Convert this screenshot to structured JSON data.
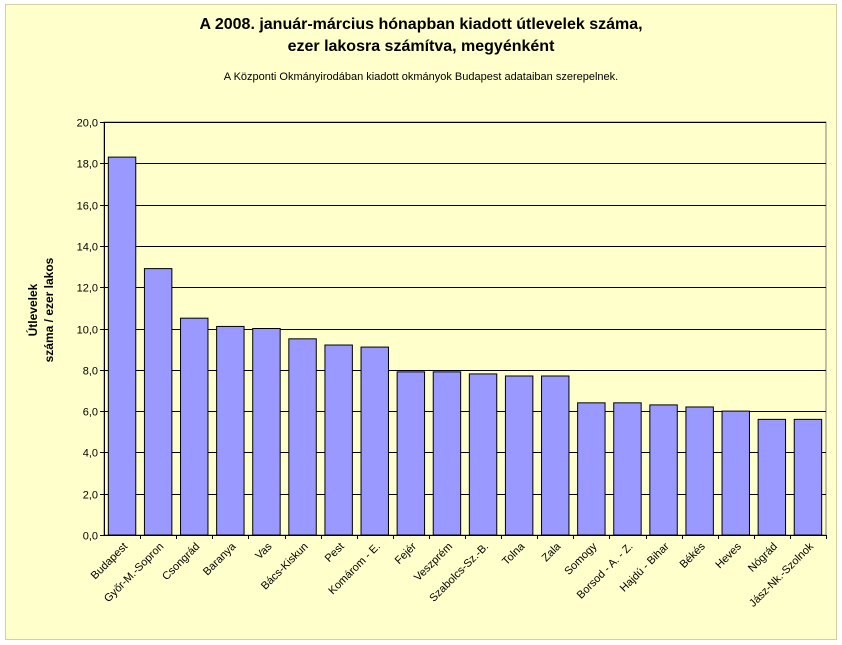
{
  "chart_data": {
    "type": "bar",
    "title_line1": "A 2008. január-március hónapban kiadott útlevelek száma,",
    "title_line2": "ezer lakosra számítva, megyénként",
    "subtitle": "A Központi Okmányirodában kiadott okmányok Budapest adataiban szerepelnek.",
    "ylabel_line1": "Útlevelek",
    "ylabel_line2": "száma / ezer lakos",
    "categories": [
      "Budapest",
      "Győr-M.-Sopron",
      "Csongrád",
      "Baranya",
      "Vas",
      "Bács-Kiskun",
      "Pest",
      "Komárom - E.",
      "Fejér",
      "Veszprém",
      "Szabolcs-Sz.-B.",
      "Tolna",
      "Zala",
      "Somogy",
      "Borsod - A. - Z.",
      "Hajdú - Bihar",
      "Békés",
      "Heves",
      "Nógrád",
      "Jász-Nk.-Szolnok"
    ],
    "values": [
      18.3,
      12.9,
      10.5,
      10.1,
      10.0,
      9.5,
      9.2,
      9.1,
      7.9,
      7.9,
      7.8,
      7.7,
      7.7,
      6.4,
      6.4,
      6.3,
      6.2,
      6.0,
      5.6,
      5.6
    ],
    "ylim": [
      0,
      20
    ],
    "yticks": [
      "0,0",
      "2,0",
      "4,0",
      "6,0",
      "8,0",
      "10,0",
      "12,0",
      "14,0",
      "16,0",
      "18,0",
      "20,0"
    ],
    "grid": true,
    "colors": {
      "bar": "#9999ff",
      "plot_bg": "#ffffcc",
      "frame": "#ffffcc"
    }
  }
}
